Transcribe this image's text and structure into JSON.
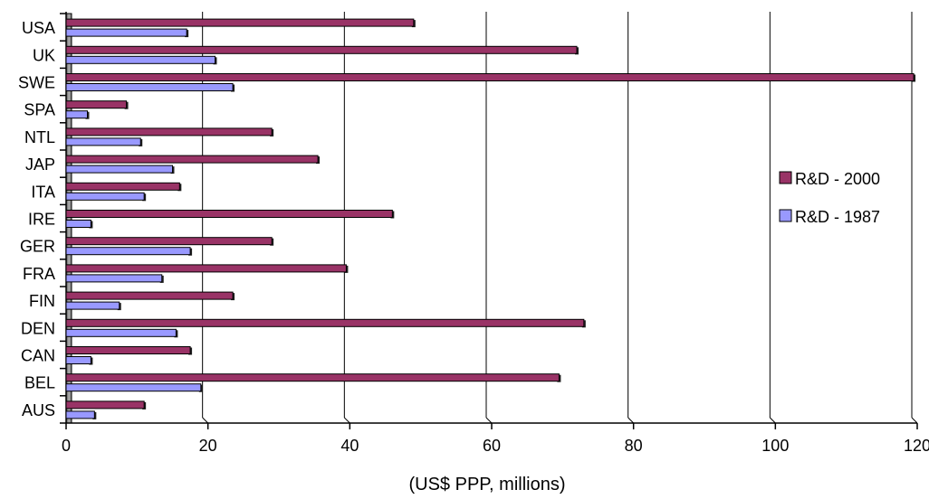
{
  "chart_data": {
    "type": "bar",
    "orientation": "horizontal",
    "categories": [
      "USA",
      "UK",
      "SWE",
      "SPA",
      "NTL",
      "JAP",
      "ITA",
      "IRE",
      "GER",
      "FRA",
      "FIN",
      "DEN",
      "CAN",
      "BEL",
      "AUS"
    ],
    "series": [
      {
        "name": "R&D -  2000",
        "color": "#993366",
        "values": [
          49,
          72,
          119.5,
          8.5,
          29,
          35.5,
          16,
          46,
          29,
          39.5,
          23.5,
          73,
          17.5,
          69.5,
          11
        ]
      },
      {
        "name": "R&D - 1987",
        "color": "#9999ff",
        "values": [
          17,
          21,
          23.5,
          3,
          10.5,
          15,
          11,
          3.5,
          17.5,
          13.5,
          7.5,
          15.5,
          3.5,
          19,
          4
        ]
      }
    ],
    "xlabel": "(US$ PPP, millions)",
    "ylabel": "",
    "xlim": [
      0,
      120
    ],
    "xticks": [
      0,
      20,
      40,
      60,
      80,
      100,
      120
    ],
    "grid": "vertical",
    "legend_position": "right"
  }
}
